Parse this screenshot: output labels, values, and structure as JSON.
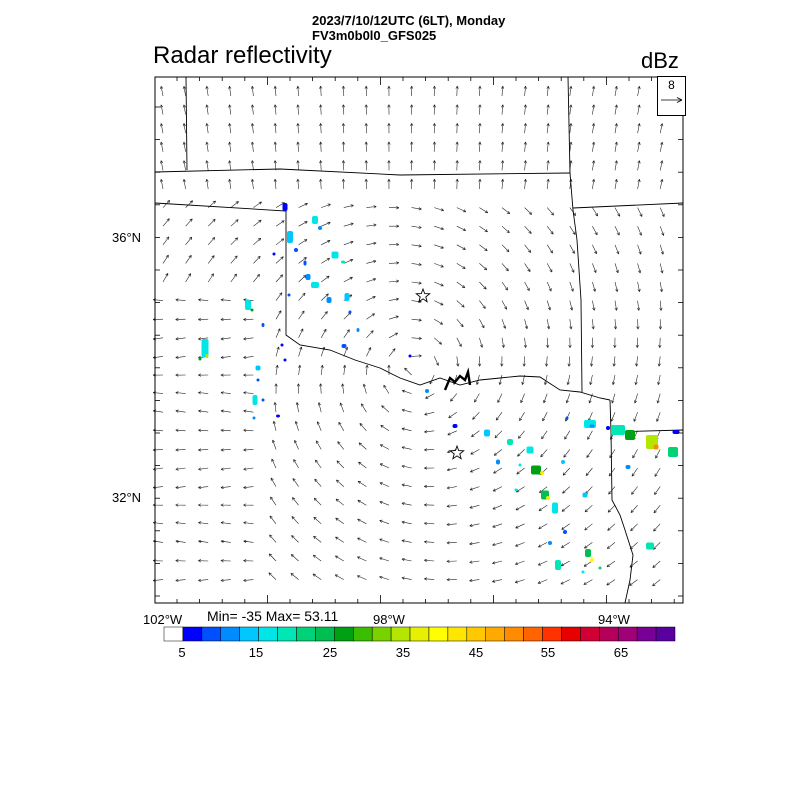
{
  "header": {
    "line1": "2023/7/10/12UTC (6LT), Monday",
    "line2": "FV3m0b0l0_GFS025"
  },
  "variable_title": "Radar reflectivity",
  "units": "dBz",
  "reference_vector": {
    "value": "8"
  },
  "lat_labels": [
    "36°N",
    "32°N"
  ],
  "lon_labels": [
    "102°W",
    "98°W",
    "94°W"
  ],
  "stats": "Min= -35 Max= 53.11",
  "colorbar": {
    "labels": [
      "5",
      "15",
      "25",
      "35",
      "45",
      "55",
      "65"
    ],
    "colors": [
      "#ffffff",
      "#0000ff",
      "#0050ff",
      "#008cff",
      "#00c8ff",
      "#00e6e6",
      "#00e6b4",
      "#00d278",
      "#00be50",
      "#00a014",
      "#3cbe00",
      "#78d200",
      "#b4e600",
      "#e6f000",
      "#ffff00",
      "#ffe600",
      "#ffc800",
      "#ffaa00",
      "#ff8c00",
      "#ff6400",
      "#ff3200",
      "#e60000",
      "#d20032",
      "#b4005a",
      "#a00078",
      "#780096",
      "#5a00a0"
    ]
  },
  "markers": [
    "star",
    "star"
  ],
  "map_elements": [
    "state-borders",
    "wind-vectors",
    "reflectivity-cells",
    "river-line"
  ]
}
